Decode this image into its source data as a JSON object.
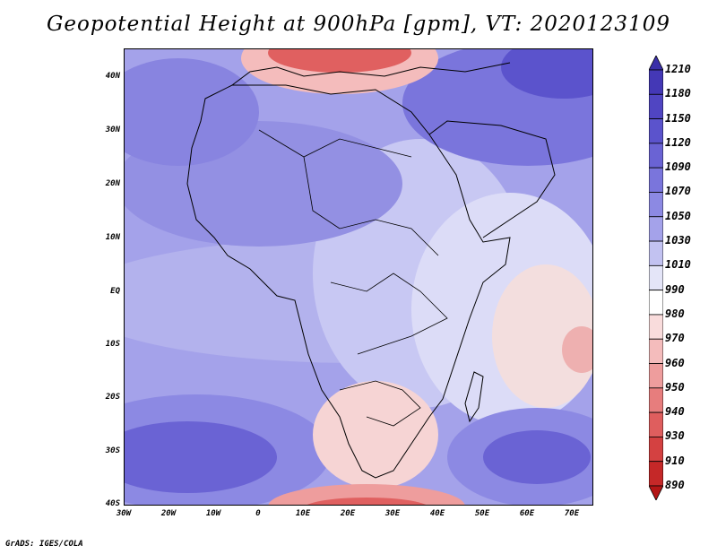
{
  "title": "Geopotential Height at 900hPa [gpm], VT: 2020123109",
  "credit": "GrADS: IGES/COLA",
  "map": {
    "region": "Africa",
    "lat_labels": [
      "40N",
      "30N",
      "20N",
      "10N",
      "EQ",
      "10S",
      "20S",
      "30S",
      "40S"
    ],
    "lon_labels": [
      "30W",
      "20W",
      "10W",
      "0",
      "10E",
      "20E",
      "30E",
      "40E",
      "50E",
      "60E",
      "70E"
    ]
  },
  "colorbar": {
    "labels": [
      "1210",
      "1180",
      "1150",
      "1120",
      "1090",
      "1070",
      "1050",
      "1030",
      "1010",
      "990",
      "980",
      "970",
      "960",
      "950",
      "940",
      "930",
      "910",
      "890"
    ],
    "colors": [
      "#3a2fa8",
      "#4438b6",
      "#5045c2",
      "#5b53cc",
      "#6a63d4",
      "#7a75dc",
      "#8c89e3",
      "#a4a2ea",
      "#c2c2f1",
      "#e4e5f8",
      "#ffffff",
      "#f9dcdc",
      "#f4bcbc",
      "#ee9d9d",
      "#e77d7d",
      "#df5e5e",
      "#d44141",
      "#c52828",
      "#b31515"
    ]
  }
}
